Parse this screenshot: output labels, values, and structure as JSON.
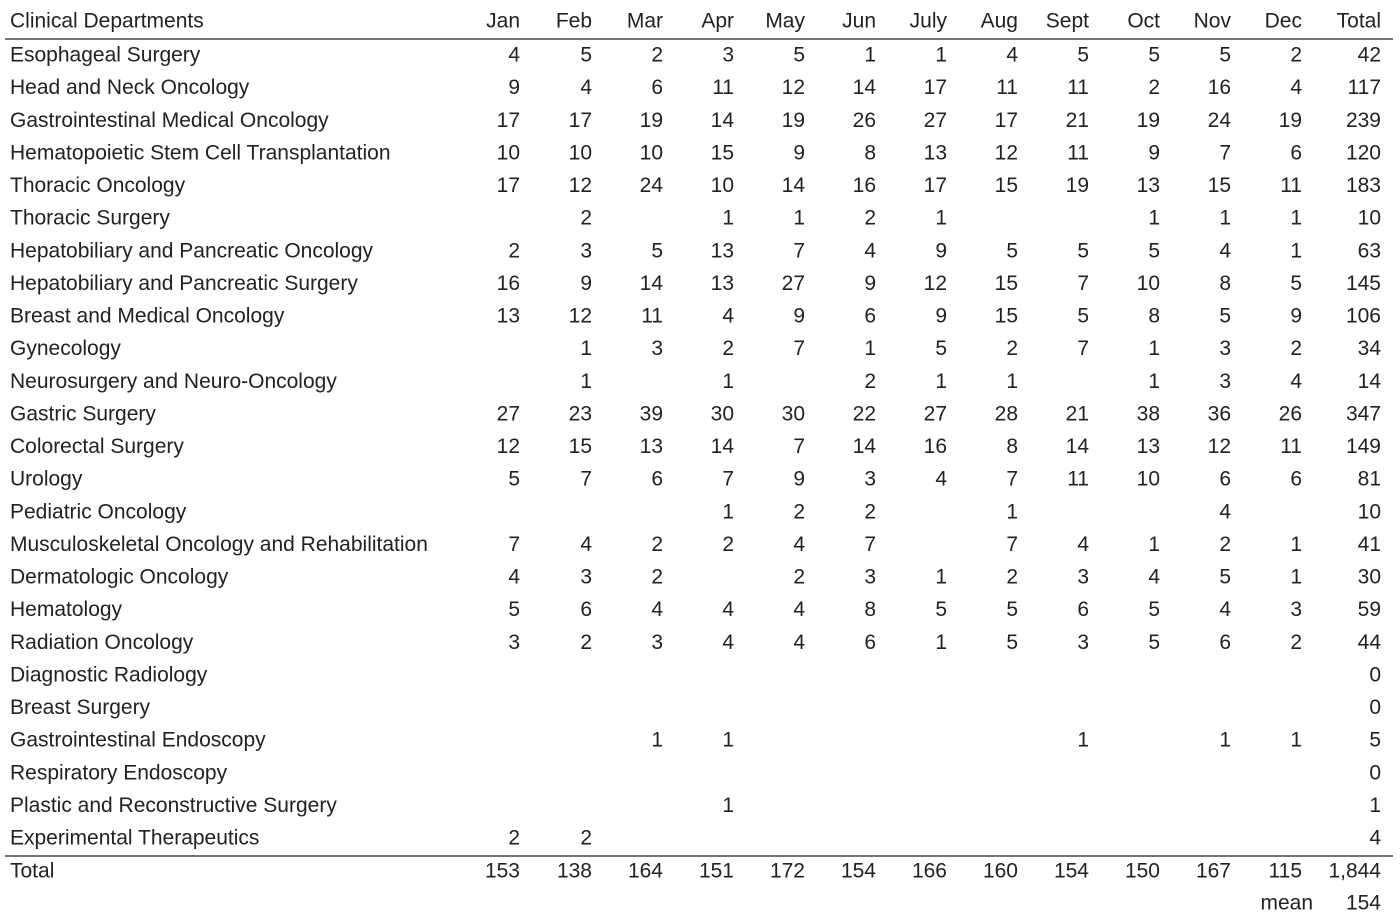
{
  "table": {
    "header": [
      "Clinical Departments",
      "Jan",
      "Feb",
      "Mar",
      "Apr",
      "May",
      "Jun",
      "July",
      "Aug",
      "Sept",
      "Oct",
      "Nov",
      "Dec",
      "Total"
    ],
    "rows": [
      {
        "label": "Esophageal Surgery",
        "cells": [
          4,
          5,
          2,
          3,
          5,
          1,
          1,
          4,
          5,
          5,
          5,
          2,
          42
        ]
      },
      {
        "label": "Head and Neck Oncology",
        "cells": [
          9,
          4,
          6,
          11,
          12,
          14,
          17,
          11,
          11,
          2,
          16,
          4,
          117
        ]
      },
      {
        "label": "Gastrointestinal Medical Oncology",
        "cells": [
          17,
          17,
          19,
          14,
          19,
          26,
          27,
          17,
          21,
          19,
          24,
          19,
          239
        ]
      },
      {
        "label": "Hematopoietic Stem Cell Transplantation",
        "cells": [
          10,
          10,
          10,
          15,
          9,
          8,
          13,
          12,
          11,
          9,
          7,
          6,
          120
        ]
      },
      {
        "label": "Thoracic Oncology",
        "cells": [
          17,
          12,
          24,
          10,
          14,
          16,
          17,
          15,
          19,
          13,
          15,
          11,
          183
        ]
      },
      {
        "label": "Thoracic Surgery",
        "cells": [
          null,
          2,
          null,
          1,
          1,
          2,
          1,
          null,
          null,
          1,
          1,
          1,
          10
        ]
      },
      {
        "label": "Hepatobiliary and Pancreatic Oncology",
        "cells": [
          2,
          3,
          5,
          13,
          7,
          4,
          9,
          5,
          5,
          5,
          4,
          1,
          63
        ]
      },
      {
        "label": "Hepatobiliary and Pancreatic Surgery",
        "cells": [
          16,
          9,
          14,
          13,
          27,
          9,
          12,
          15,
          7,
          10,
          8,
          5,
          145
        ]
      },
      {
        "label": "Breast and Medical Oncology",
        "cells": [
          13,
          12,
          11,
          4,
          9,
          6,
          9,
          15,
          5,
          8,
          5,
          9,
          106
        ]
      },
      {
        "label": "Gynecology",
        "cells": [
          null,
          1,
          3,
          2,
          7,
          1,
          5,
          2,
          7,
          1,
          3,
          2,
          34
        ]
      },
      {
        "label": "Neurosurgery and Neuro-Oncology",
        "cells": [
          null,
          1,
          null,
          1,
          null,
          2,
          1,
          1,
          null,
          1,
          3,
          4,
          14
        ]
      },
      {
        "label": "Gastric Surgery",
        "cells": [
          27,
          23,
          39,
          30,
          30,
          22,
          27,
          28,
          21,
          38,
          36,
          26,
          347
        ]
      },
      {
        "label": "Colorectal Surgery",
        "cells": [
          12,
          15,
          13,
          14,
          7,
          14,
          16,
          8,
          14,
          13,
          12,
          11,
          149
        ]
      },
      {
        "label": "Urology",
        "cells": [
          5,
          7,
          6,
          7,
          9,
          3,
          4,
          7,
          11,
          10,
          6,
          6,
          81
        ]
      },
      {
        "label": "Pediatric Oncology",
        "cells": [
          null,
          null,
          null,
          1,
          2,
          2,
          null,
          1,
          null,
          null,
          4,
          null,
          10
        ]
      },
      {
        "label": "Musculoskeletal Oncology and Rehabilitation",
        "cells": [
          7,
          4,
          2,
          2,
          4,
          7,
          null,
          7,
          4,
          1,
          2,
          1,
          41
        ]
      },
      {
        "label": "Dermatologic Oncology",
        "cells": [
          4,
          3,
          2,
          null,
          2,
          3,
          1,
          2,
          3,
          4,
          5,
          1,
          30
        ]
      },
      {
        "label": "Hematology",
        "cells": [
          5,
          6,
          4,
          4,
          4,
          8,
          5,
          5,
          6,
          5,
          4,
          3,
          59
        ]
      },
      {
        "label": "Radiation Oncology",
        "cells": [
          3,
          2,
          3,
          4,
          4,
          6,
          1,
          5,
          3,
          5,
          6,
          2,
          44
        ]
      },
      {
        "label": "Diagnostic Radiology",
        "cells": [
          null,
          null,
          null,
          null,
          null,
          null,
          null,
          null,
          null,
          null,
          null,
          null,
          0
        ]
      },
      {
        "label": "Breast Surgery",
        "cells": [
          null,
          null,
          null,
          null,
          null,
          null,
          null,
          null,
          null,
          null,
          null,
          null,
          0
        ]
      },
      {
        "label": "Gastrointestinal Endoscopy",
        "cells": [
          null,
          null,
          1,
          1,
          null,
          null,
          null,
          null,
          1,
          null,
          1,
          1,
          5
        ]
      },
      {
        "label": "Respiratory Endoscopy",
        "cells": [
          null,
          null,
          null,
          null,
          null,
          null,
          null,
          null,
          null,
          null,
          null,
          null,
          0
        ]
      },
      {
        "label": "Plastic and Reconstructive Surgery",
        "cells": [
          null,
          null,
          null,
          1,
          null,
          null,
          null,
          null,
          null,
          null,
          null,
          null,
          1
        ]
      },
      {
        "label": "Experimental Therapeutics",
        "cells": [
          2,
          2,
          null,
          null,
          null,
          null,
          null,
          null,
          null,
          null,
          null,
          null,
          4
        ]
      }
    ],
    "total": {
      "label": "Total",
      "cells": [
        153,
        138,
        164,
        151,
        172,
        154,
        166,
        160,
        154,
        150,
        167,
        115,
        "1,844"
      ]
    },
    "mean": {
      "label": "mean",
      "value": 154
    }
  }
}
